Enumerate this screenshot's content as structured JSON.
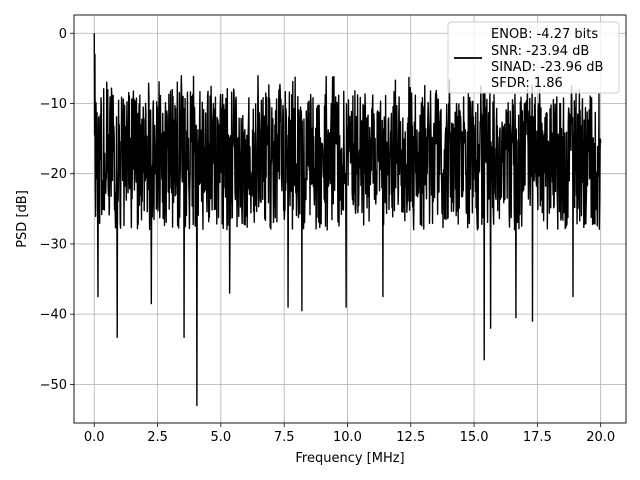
{
  "chart_data": {
    "type": "line",
    "title": "",
    "xlabel": "Frequency [MHz]",
    "ylabel": "PSD [dB]",
    "xlim": [
      -0.8,
      21.0
    ],
    "ylim": [
      -55.5,
      2.6
    ],
    "x_ticks": [
      0.0,
      2.5,
      5.0,
      7.5,
      10.0,
      12.5,
      15.0,
      17.5,
      20.0
    ],
    "x_tick_labels": [
      "0.0",
      "2.5",
      "5.0",
      "7.5",
      "10.0",
      "12.5",
      "15.0",
      "17.5",
      "20.0"
    ],
    "y_ticks": [
      0,
      -10,
      -20,
      -30,
      -40,
      -50
    ],
    "y_tick_labels": [
      "0",
      "−10",
      "−20",
      "−30",
      "−40",
      "−50"
    ],
    "grid": true,
    "legend_position": "top-right",
    "legend_lines": [
      "ENOB: -4.27 bits",
      "SNR: -23.94 dB",
      "SINAD: -23.96 dB",
      "SFDR: 1.86"
    ],
    "series_color": "#000000",
    "x_range": [
      0.0,
      20.0
    ],
    "noise_band": {
      "upper_typical": -8,
      "center_typical": -17,
      "lower_typical": -28
    },
    "peaks": [
      {
        "x": 0.0,
        "y": 0.0
      },
      {
        "x": 0.02,
        "y": -3.0
      }
    ],
    "dips": [
      {
        "x": 0.15,
        "y": -37.5
      },
      {
        "x": 0.9,
        "y": -43.3
      },
      {
        "x": 2.25,
        "y": -38.5
      },
      {
        "x": 3.55,
        "y": -43.3
      },
      {
        "x": 4.05,
        "y": -53.0
      },
      {
        "x": 5.35,
        "y": -37.0
      },
      {
        "x": 7.65,
        "y": -39.0
      },
      {
        "x": 8.2,
        "y": -39.5
      },
      {
        "x": 9.95,
        "y": -39.0
      },
      {
        "x": 11.4,
        "y": -37.5
      },
      {
        "x": 15.4,
        "y": -46.5
      },
      {
        "x": 15.65,
        "y": -42.0
      },
      {
        "x": 16.65,
        "y": -40.5
      },
      {
        "x": 17.3,
        "y": -41.0
      },
      {
        "x": 18.9,
        "y": -37.5
      }
    ]
  }
}
